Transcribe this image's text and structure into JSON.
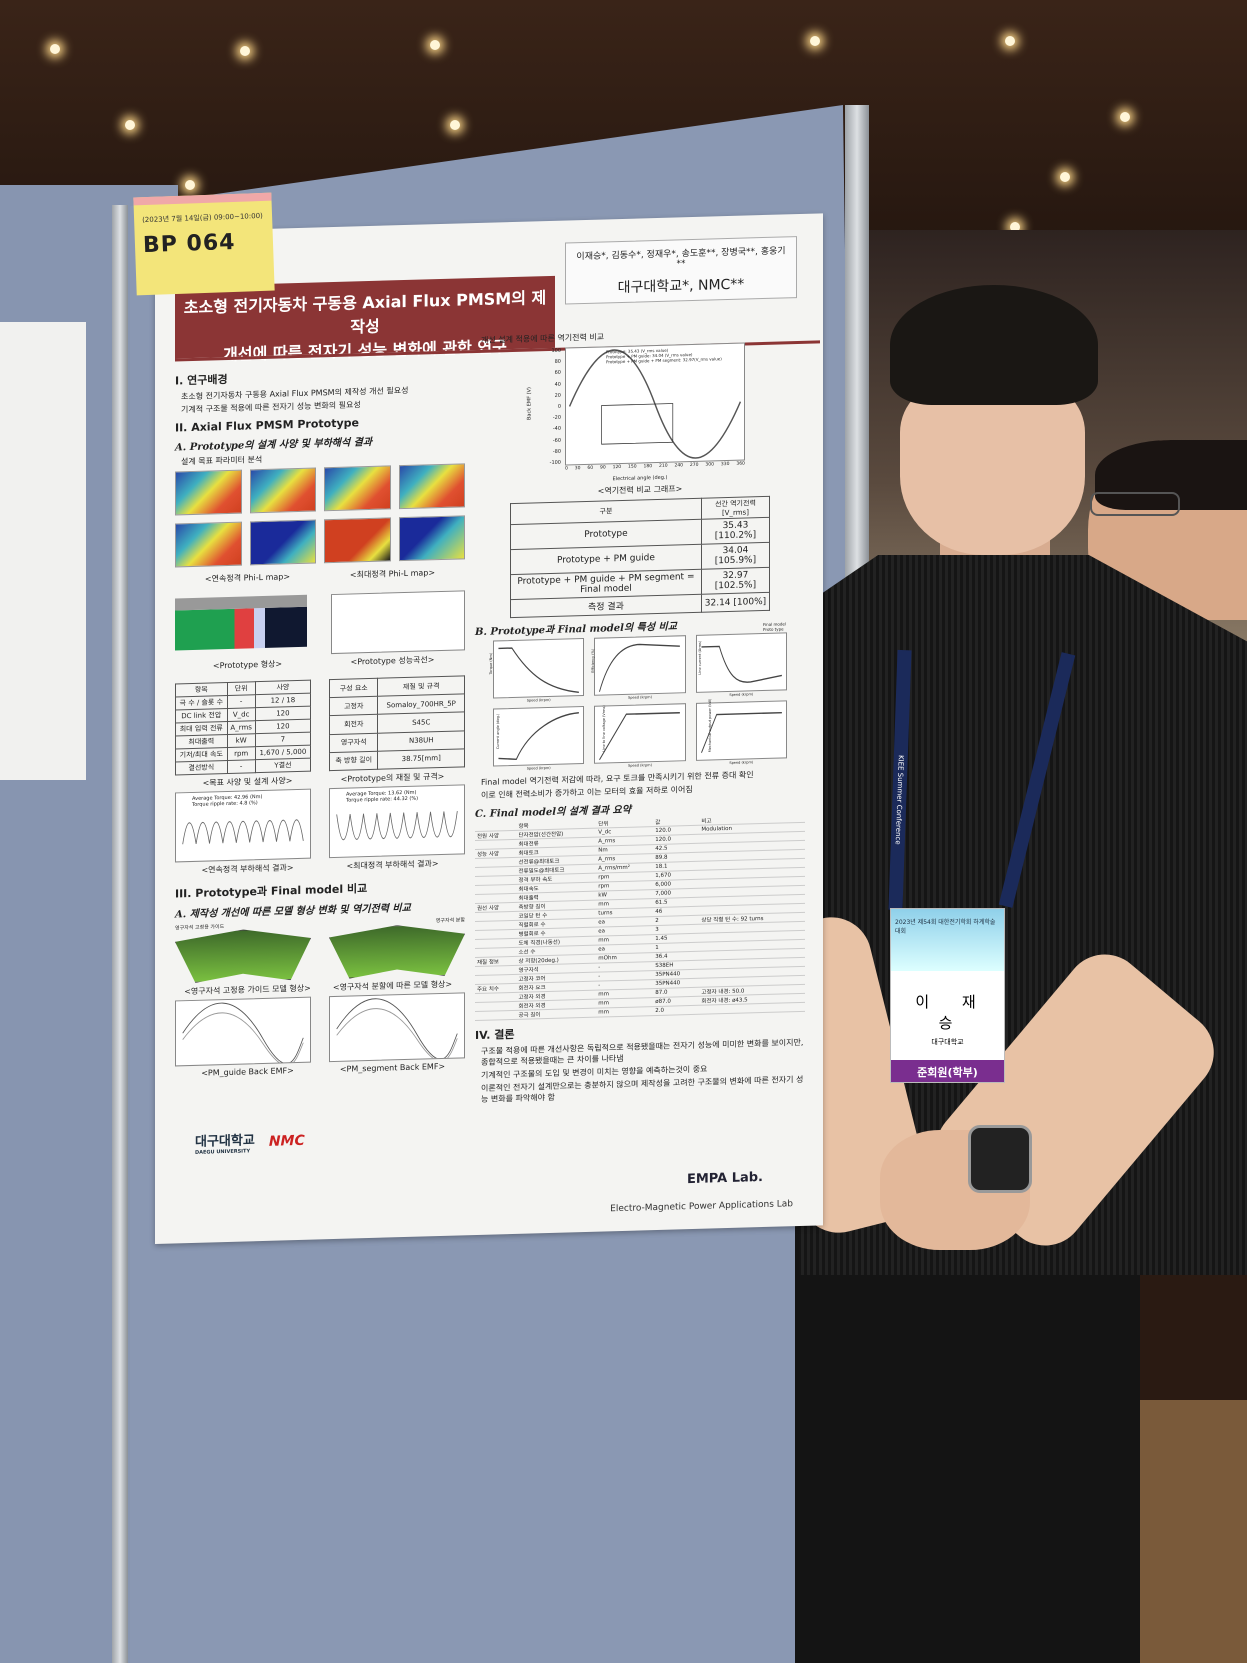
{
  "tag": {
    "date": "(2023년 7월 14일(금) 09:00~10:00)",
    "code": "BP 064"
  },
  "poster": {
    "title_line1": "초소형 전기자동차 구동용 Axial Flux PMSM의 제작성",
    "title_line2": "개선에 따른 전자기 성능 변화에 관한 연구",
    "authors": "이재승*, 김동수*, 정재우*, 송도훈**, 장병국**, 홍웅기**",
    "affiliation": "대구대학교*, NMC**",
    "sec1": {
      "title": "I. 연구배경",
      "bullets": [
        "초소형 전기자동차 구동용 Axial Flux PMSM의 제작성 개선 필요성",
        "기계적 구조물 적용에 따른 전자기 성능 변화의 필요성"
      ]
    },
    "sec2": {
      "title": "II. Axial Flux PMSM Prototype",
      "subA": "A. Prototype의 설계 사양 및 부하해석 결과",
      "bullet": "설계 목표 파라미터 분석",
      "cap_cont_map": "<연속정격 Phi-L map>",
      "cap_max_map": "<최대정격 Phi-L map>",
      "cap_shape": "<Prototype 형상>",
      "cap_perf": "<Prototype 성능곡선>",
      "spec_table": {
        "headers": [
          "항목",
          "단위",
          "사양"
        ],
        "rows": [
          [
            "극 수 / 슬롯 수",
            "-",
            "12 / 18"
          ],
          [
            "DC link 전압",
            "V_dc",
            "120"
          ],
          [
            "최대 입력 전류",
            "A_rms",
            "120"
          ],
          [
            "최대출력",
            "kW",
            "7"
          ],
          [
            "기저/최대 속도",
            "rpm",
            "1,670 / 5,000"
          ],
          [
            "결선방식",
            "-",
            "Y결선"
          ]
        ]
      },
      "cap_spec": "<목표 사양 및 설계 사양>",
      "mat_table": {
        "headers": [
          "구성 요소",
          "재질 및 규격"
        ],
        "rows": [
          [
            "고정자",
            "Somaloy_700HR_5P"
          ],
          [
            "회전자",
            "S45C"
          ],
          [
            "영구자석",
            "N38UH"
          ],
          [
            "축 방향 길이",
            "38.75[mm]"
          ]
        ]
      },
      "cap_mat": "<Prototype의 재질 및 규격>",
      "cont_legend": [
        "Average Torque: 42.96 (Nm)",
        "Torque ripple rate: 4.8 (%)"
      ],
      "max_legend": [
        "Average Torque: 13.62 (Nm)",
        "Torque ripple rate: 44.32 (%)"
      ],
      "cap_cont_load": "<연속정격 부하해석 결과>",
      "cap_max_load": "<최대정격 부하해석 결과>"
    },
    "sec3": {
      "title": "III. Prototype과 Final model 비교",
      "subA": "A. 제작성 개선에 따른 모델 형상 변화 및 역기전력 비교",
      "label_guide": "영구자석 고정용 가이드",
      "label_seg": "영구자석 분할",
      "cap_guide_shape": "<영구자석 고정용 가이드 모델 형상>",
      "cap_seg_shape": "<영구자석 분할에 따른 모델 형상>",
      "cap_guide_emf": "<PM_guide Back EMF>",
      "cap_seg_emf": "<PM_segment Back EMF>",
      "emf_bullet": "개선 설계 적용에 따른 역기전력 비교",
      "emf_legend": [
        "Prototype: 35.43 (V_rms value)",
        "Prototype + PM guide: 34.04 (V_rms value)",
        "Prototype + PM guide + PM segment: 32.97(V_rms value)"
      ],
      "emf_xlabel": "Electrical angle (deg.)",
      "emf_ylabel": "Back EMF (V)",
      "emf_xticks": [
        "0",
        "30",
        "60",
        "90",
        "120",
        "150",
        "180",
        "210",
        "240",
        "270",
        "300",
        "330",
        "360"
      ],
      "emf_yticks": [
        "100",
        "80",
        "60",
        "40",
        "20",
        "0",
        "-20",
        "-40",
        "-60",
        "-80",
        "-100"
      ],
      "cap_emf": "<역기전력 비교 그래프>",
      "emf_table": {
        "headers": [
          "구분",
          "선간 역기전력 [V_rms]"
        ],
        "rows": [
          [
            "Prototype",
            "35.43 [110.2%]"
          ],
          [
            "Prototype + PM guide",
            "34.04 [105.9%]"
          ],
          [
            "Prototype + PM guide + PM segment = Final model",
            "32.97 [102.5%]"
          ],
          [
            "측정 결과",
            "32.14 [100%]"
          ]
        ]
      },
      "subB": "B. Prototype과 Final model의 특성 비교",
      "char_legend": [
        "Final model",
        "Proto type"
      ],
      "char_xlabel": "Speed (krpm)",
      "char_ylabels": [
        "Torque (Nm)",
        "Efficiency (%)",
        "Line current (Arms)",
        "Current angle (deg.)",
        "Line to line voltage (Vrms)",
        "Mechanical output power (kW)"
      ],
      "b_bullets": [
        "Final model 역기전력 저감에 따라, 요구 토크를 만족시키기 위한 전류 증대 확인",
        "이로 인해 전력소비가 증가하고 이는 모터의 효율 저하로 이어짐"
      ],
      "subC": "C. Final model의 설계 결과 요약",
      "sum_headers": [
        "항목",
        "단위",
        "값",
        "비고"
      ],
      "sum_rows": [
        [
          "전원 사양",
          "단자전압(선간전압)",
          "V_dc",
          "120.0",
          "Modulation"
        ],
        [
          "",
          "최대전류",
          "A_rms",
          "120.0",
          ""
        ],
        [
          "성능 사양",
          "최대토크",
          "Nm",
          "42.5",
          ""
        ],
        [
          "",
          "선전류@최대토크",
          "A_rms",
          "89.8",
          ""
        ],
        [
          "",
          "전류밀도@최대토크",
          "A_rms/mm²",
          "18.1",
          ""
        ],
        [
          "",
          "정격 부하 속도",
          "rpm",
          "1,670",
          ""
        ],
        [
          "",
          "최대속도",
          "rpm",
          "6,000",
          ""
        ],
        [
          "",
          "최대출력",
          "kW",
          "7,000",
          ""
        ],
        [
          "권선 사양",
          "축방향 길이",
          "mm",
          "61.5",
          ""
        ],
        [
          "",
          "코일당 턴 수",
          "turns",
          "46",
          ""
        ],
        [
          "",
          "직렬회로 수",
          "ea",
          "2",
          "상당 직렬 턴 수: 92 turns"
        ],
        [
          "",
          "병렬회로 수",
          "ea",
          "3",
          ""
        ],
        [
          "",
          "도체 직경(나동선)",
          "mm",
          "1.45",
          ""
        ],
        [
          "",
          "소선 수",
          "ea",
          "1",
          ""
        ],
        [
          "재질 정보",
          "상 저항(20deg.)",
          "mOhm",
          "36.4",
          ""
        ],
        [
          "",
          "영구자석",
          "-",
          "S38EH",
          ""
        ],
        [
          "",
          "고정자 코어",
          "-",
          "35PN440",
          ""
        ],
        [
          "주요 치수",
          "회전자 요크",
          "-",
          "35PN440",
          ""
        ],
        [
          "",
          "고정자 외경",
          "mm",
          "87.0",
          "고정자 내경: 50.0"
        ],
        [
          "",
          "회전자 외경",
          "mm",
          "ø87.0",
          "회전자 내경: ø43.5"
        ],
        [
          "",
          "공극 길이",
          "mm",
          "2.0",
          ""
        ]
      ]
    },
    "sec4": {
      "title": "IV. 결론",
      "bullets": [
        "구조물 적용에 따른 개선사항은 독립적으로 적용됐을때는 전자기 성능에 미미한 변화를 보이지만, 종합적으로 적용됐을때는 큰 차이를 나타냄",
        "기계적인 구조물의 도입 및 변경이 미치는 영향을 예측하는것이 중요",
        "이론적인 전자기 설계만으로는 충분하지 않으며 제작성을 고려한 구조물의 변화에 따른 전자기 성능 변화를 파악해야 함"
      ]
    },
    "logos": {
      "university": "대구대학교",
      "university_en": "DAEGU UNIVERSITY",
      "company": "NMC",
      "lab_logo": "EMPA Lab.",
      "lab_name": "Electro-Magnetic Power Applications Lab"
    }
  },
  "badge": {
    "event": "2023년 제54회 대한전기학회 하계학술대회",
    "name": "이 재 승",
    "school": "대구대학교",
    "role": "준회원(학부)",
    "lanyard": "KIEE Summer Conference"
  },
  "colors": {
    "title_bar": "#8b3535",
    "board": "#8a98b3",
    "tag": "#f3e57a",
    "badge_role": "#7a2e8f"
  }
}
